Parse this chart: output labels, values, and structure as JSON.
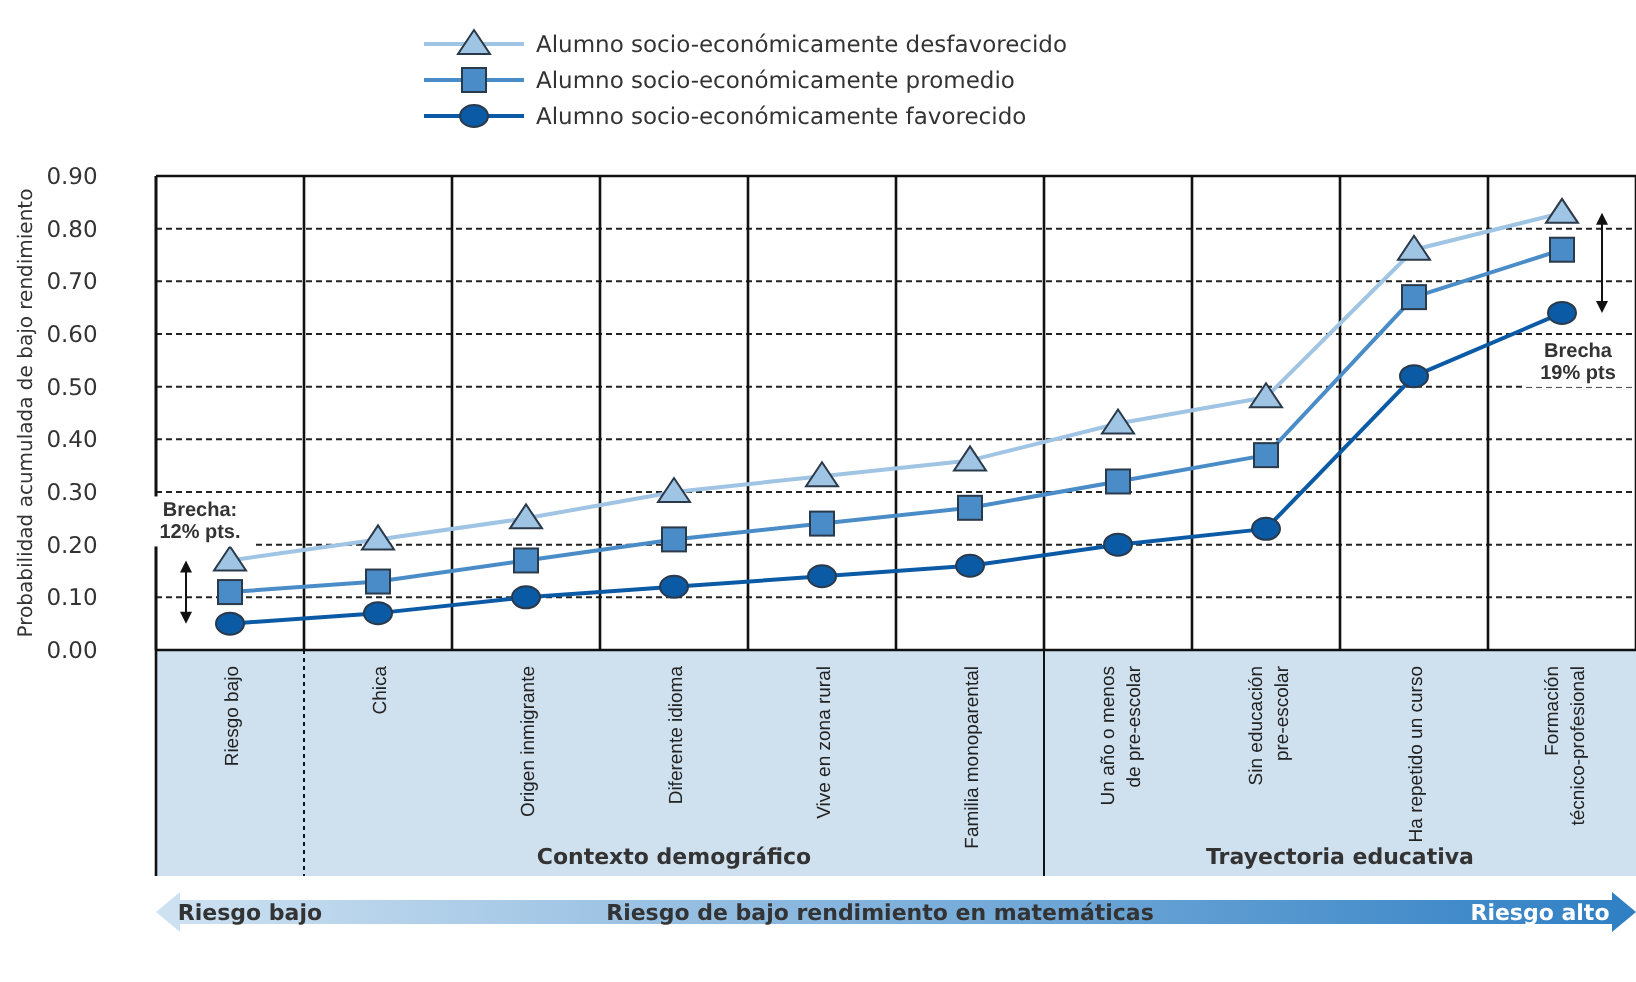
{
  "chart_data": {
    "type": "line",
    "ylabel": "Probabilidad acumulada de bajo rendimiento",
    "categories": [
      "Riesgo bajo",
      "Chica",
      "Origen inmigrante",
      "Diferente idioma",
      "Vive en zona rural",
      "Familia monoparental",
      "Un año o menos de pre-escolar",
      "Sin educación pre-escolar",
      "Ha repetido un curso",
      "Formación técnico-profesional"
    ],
    "series": [
      {
        "name": "Alumno socio-económicamente desfavorecido",
        "color": "#9fc4e4",
        "marker": "triangle",
        "values": [
          0.17,
          0.21,
          0.25,
          0.3,
          0.33,
          0.36,
          0.43,
          0.48,
          0.76,
          0.83
        ]
      },
      {
        "name": "Alumno socio-económicamente promedio",
        "color": "#4a8cc8",
        "marker": "square",
        "values": [
          0.11,
          0.13,
          0.17,
          0.21,
          0.24,
          0.27,
          0.32,
          0.37,
          0.67,
          0.76
        ]
      },
      {
        "name": "Alumno socio-económicamente favorecido",
        "color": "#0b5aa6",
        "marker": "circle",
        "values": [
          0.05,
          0.07,
          0.1,
          0.12,
          0.14,
          0.16,
          0.2,
          0.23,
          0.52,
          0.64
        ]
      }
    ],
    "ylim": [
      0,
      0.9
    ],
    "yticks": [
      {
        "value": 0,
        "label": "0.00"
      },
      {
        "value": 0.1,
        "label": "0.10"
      },
      {
        "value": 0.2,
        "label": "0.20"
      },
      {
        "value": 0.3,
        "label": "0.30"
      },
      {
        "value": 0.4,
        "label": "0.40"
      },
      {
        "value": 0.5,
        "label": "0.50"
      },
      {
        "value": 0.6,
        "label": "0.60"
      },
      {
        "value": 0.7,
        "label": "0.70"
      },
      {
        "value": 0.8,
        "label": "0.80"
      },
      {
        "value": 0.9,
        "label": "0.90"
      }
    ],
    "grid": true,
    "legend": "top",
    "annotations": [
      "Brecha: 12% pts.",
      "Brecha 19% pts",
      "Contexto demográfico",
      "Trayectoria educativa",
      "Riesgo bajo",
      "Riesgo de bajo rendimiento en matemáticas",
      "Riesgo alto"
    ]
  }
}
